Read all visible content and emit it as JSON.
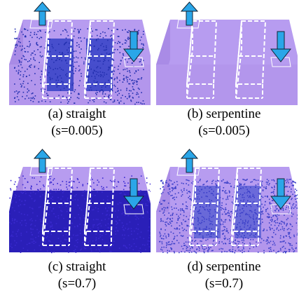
{
  "panels": [
    {
      "label": "(a) straight",
      "param": "(s=0.005)"
    },
    {
      "label": "(b) serpentine",
      "param": "(s=0.005)"
    },
    {
      "label": "(c) straight",
      "param": "(s=0.7)"
    },
    {
      "label": "(d) serpentine",
      "param": "(s=0.7)"
    }
  ]
}
